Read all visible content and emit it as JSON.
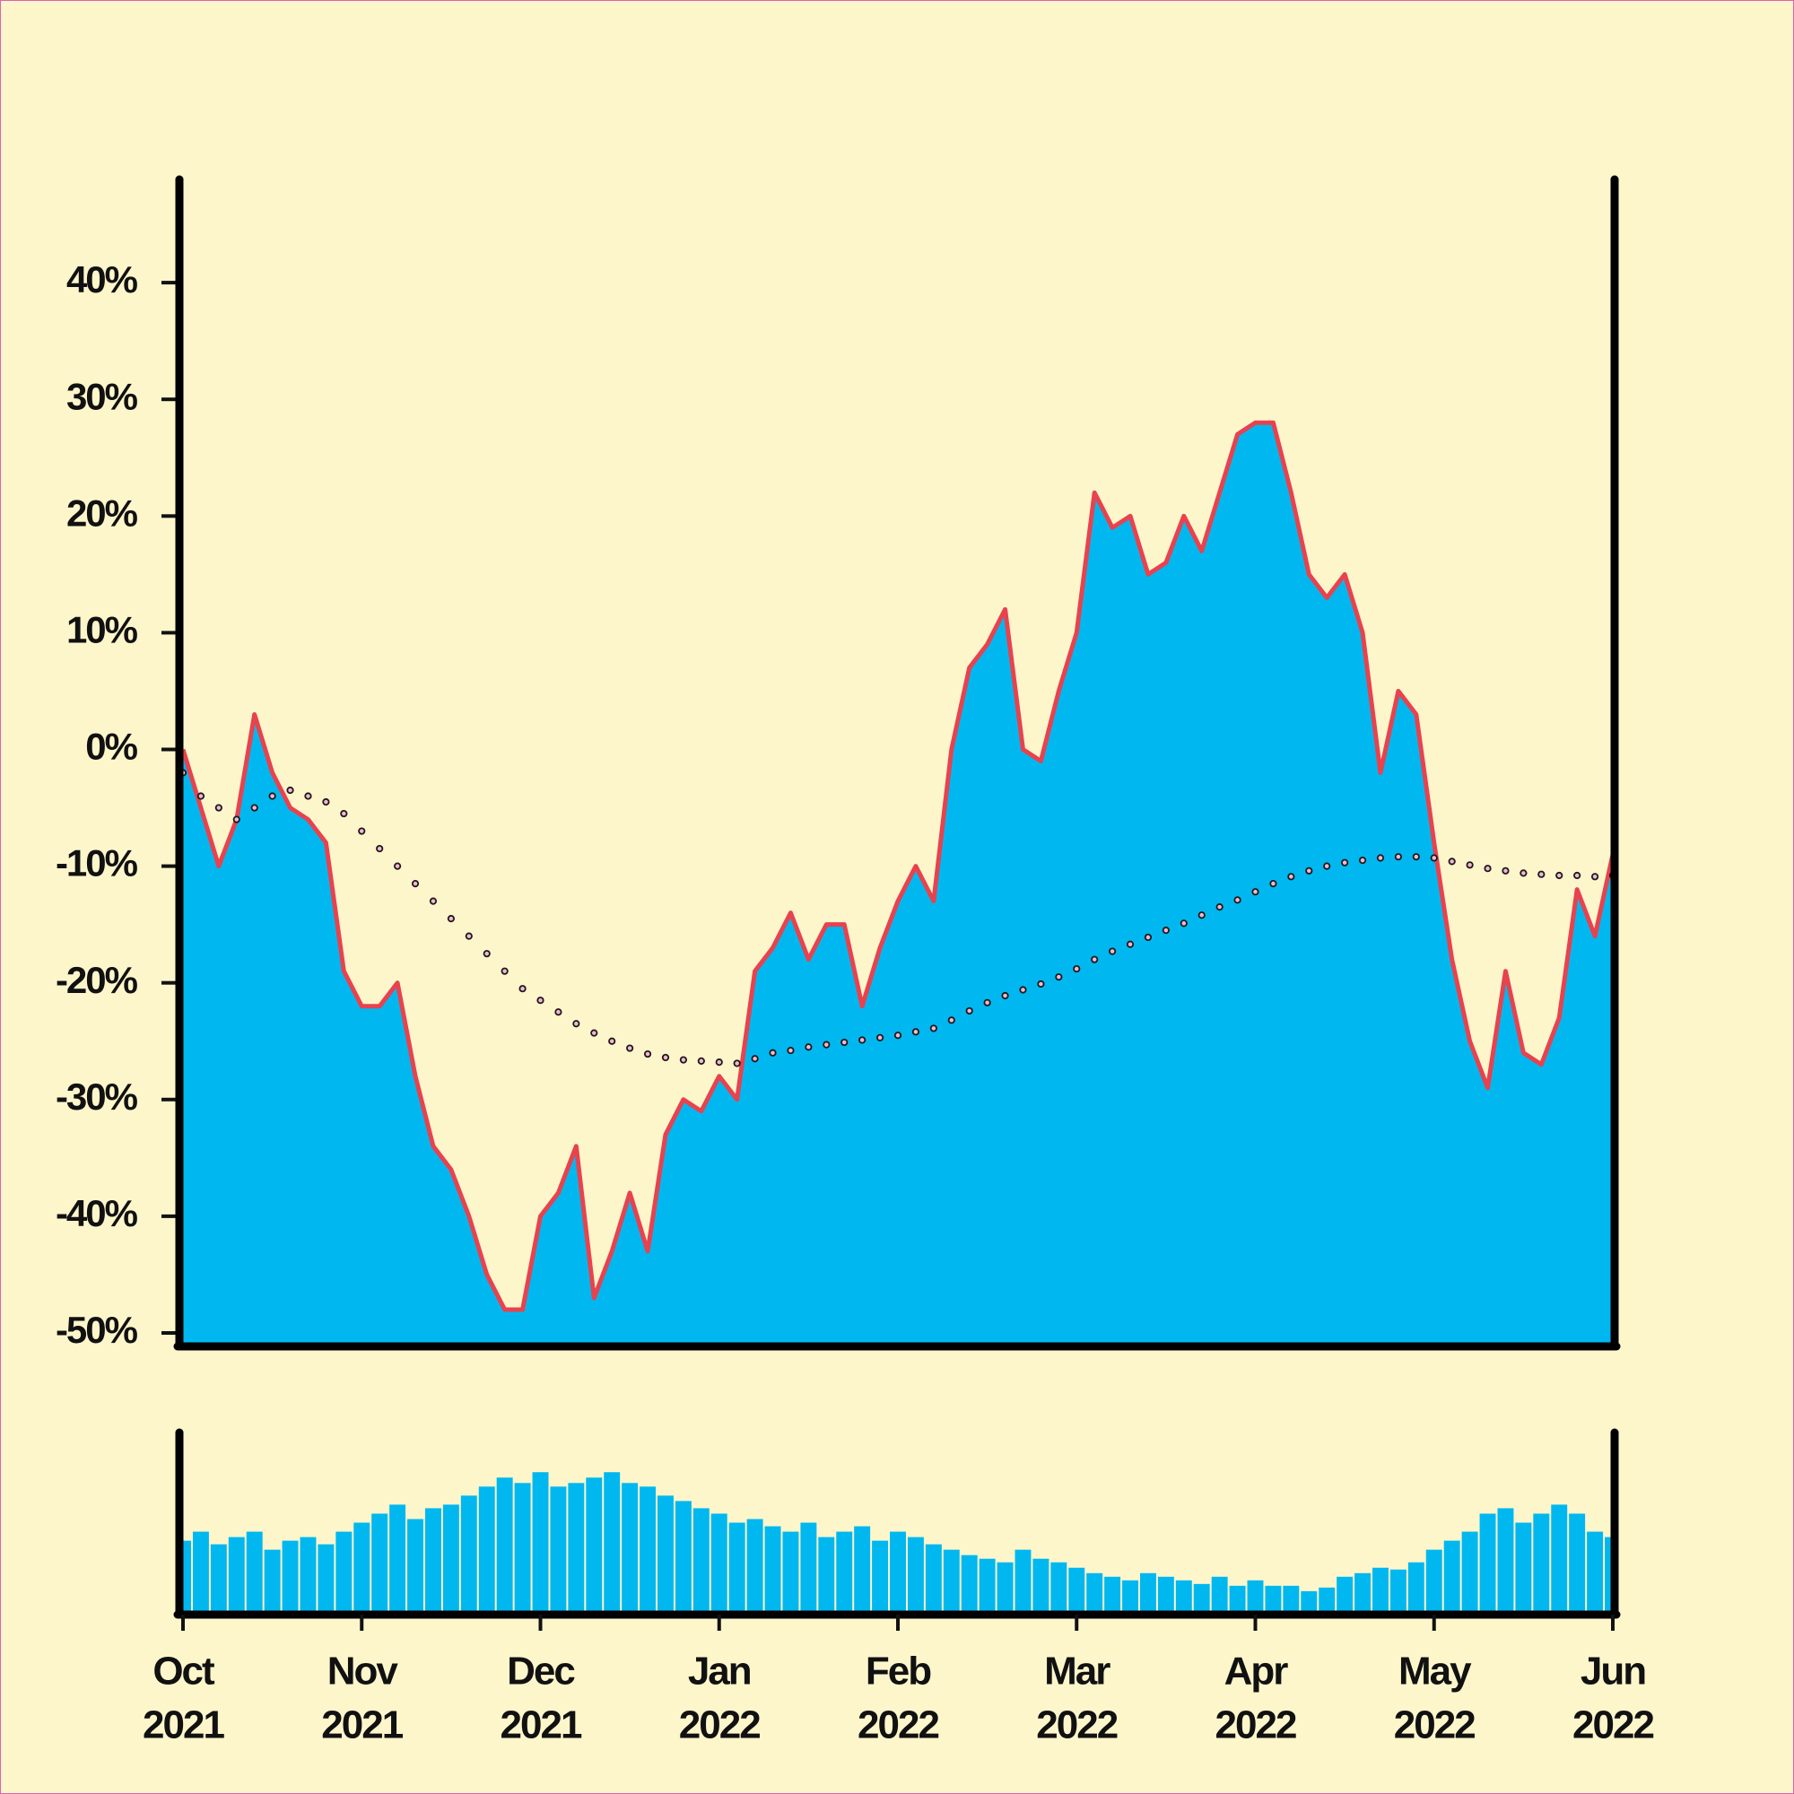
{
  "chart_data": [
    {
      "type": "area",
      "xlim": [
        "2021-10",
        "2022-06"
      ],
      "ylim": [
        -51,
        49
      ],
      "yticks": [
        {
          "value": -50,
          "label": "-50%"
        },
        {
          "value": -40,
          "label": "-40%"
        },
        {
          "value": -30,
          "label": "-30%"
        },
        {
          "value": -20,
          "label": "-20%"
        },
        {
          "value": -10,
          "label": "-10%"
        },
        {
          "value": 0,
          "label": "0%"
        },
        {
          "value": 10,
          "label": "10%"
        },
        {
          "value": 20,
          "label": "20%"
        },
        {
          "value": 30,
          "label": "30%"
        },
        {
          "value": 40,
          "label": "40%"
        }
      ],
      "series": [
        {
          "color": "#e8424f",
          "fill": "#00b8ef",
          "values": [
            0,
            -5,
            -10,
            -6,
            3,
            -2,
            -5,
            -6,
            -8,
            -19,
            -22,
            -22,
            -20,
            -28,
            -34,
            -36,
            -40,
            -45,
            -48,
            -48,
            -40,
            -38,
            -34,
            -47,
            -43,
            -38,
            -43,
            -33,
            -30,
            -31,
            -28,
            -30,
            -19,
            -17,
            -14,
            -18,
            -15,
            -15,
            -22,
            -17,
            -13,
            -10,
            -13,
            0,
            7,
            9,
            12,
            0,
            -1,
            5,
            10,
            22,
            19,
            20,
            15,
            16,
            20,
            17,
            22,
            27,
            28,
            28,
            22,
            15,
            13,
            15,
            10,
            -2,
            5,
            3,
            -8,
            -18,
            -25,
            -29,
            -19,
            -26,
            -27,
            -23,
            -12,
            -16,
            -9
          ]
        },
        {
          "color": "#1a1a1a",
          "fill": "#f7b6d2",
          "style": "dotted",
          "values": [
            -2,
            -4,
            -5,
            -6,
            -5,
            -4,
            -3.5,
            -4,
            -4.5,
            -5.5,
            -7,
            -8.5,
            -10,
            -11.5,
            -13,
            -14.5,
            -16,
            -17.5,
            -19,
            -20.5,
            -21.5,
            -22.5,
            -23.5,
            -24.3,
            -25,
            -25.6,
            -26.1,
            -26.4,
            -26.6,
            -26.7,
            -26.8,
            -26.9,
            -26.5,
            -26,
            -25.8,
            -25.5,
            -25.3,
            -25.1,
            -24.9,
            -24.7,
            -24.5,
            -24.2,
            -23.9,
            -23.2,
            -22.4,
            -21.7,
            -21.1,
            -20.6,
            -20.1,
            -19.5,
            -18.8,
            -18,
            -17.3,
            -16.7,
            -16.1,
            -15.5,
            -14.9,
            -14.2,
            -13.5,
            -12.9,
            -12.2,
            -11.5,
            -10.9,
            -10.4,
            -10,
            -9.7,
            -9.5,
            -9.3,
            -9.2,
            -9.2,
            -9.3,
            -9.6,
            -9.9,
            -10.2,
            -10.4,
            -10.6,
            -10.7,
            -10.8,
            -10.8,
            -10.9,
            -10.8
          ]
        }
      ]
    },
    {
      "type": "bar",
      "xlim": [
        "2021-10",
        "2022-06"
      ],
      "ylim": [
        0,
        100
      ],
      "color": "#00b8ef",
      "values": [
        40,
        45,
        38,
        42,
        45,
        35,
        40,
        42,
        38,
        45,
        50,
        55,
        60,
        52,
        58,
        60,
        65,
        70,
        75,
        72,
        78,
        70,
        72,
        75,
        78,
        72,
        70,
        65,
        62,
        58,
        55,
        50,
        52,
        48,
        45,
        50,
        42,
        45,
        48,
        40,
        45,
        42,
        38,
        35,
        32,
        30,
        28,
        35,
        30,
        28,
        25,
        22,
        20,
        18,
        22,
        20,
        18,
        16,
        20,
        15,
        18,
        15,
        15,
        12,
        14,
        20,
        22,
        25,
        24,
        28,
        35,
        40,
        45,
        55,
        58,
        50,
        55,
        60,
        55,
        45,
        42
      ],
      "xticks": [
        {
          "value": "2021-10",
          "label": "Oct",
          "year": "2021"
        },
        {
          "value": "2021-11",
          "label": "Nov",
          "year": "2021"
        },
        {
          "value": "2021-12",
          "label": "Dec",
          "year": "2021"
        },
        {
          "value": "2022-01",
          "label": "Jan",
          "year": "2022"
        },
        {
          "value": "2022-02",
          "label": "Feb",
          "year": "2022"
        },
        {
          "value": "2022-03",
          "label": "Mar",
          "year": "2022"
        },
        {
          "value": "2022-04",
          "label": "Apr",
          "year": "2022"
        },
        {
          "value": "2022-05",
          "label": "May",
          "year": "2022"
        },
        {
          "value": "2022-06",
          "label": "Jun",
          "year": "2022"
        }
      ]
    }
  ]
}
